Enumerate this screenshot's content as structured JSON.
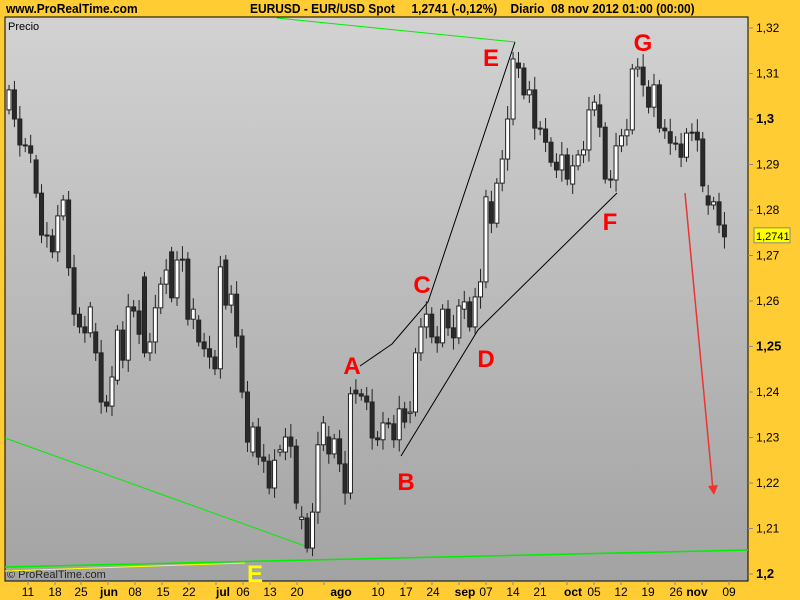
{
  "header": {
    "site": "www.ProRealTime.com",
    "title": "EURUSD - EUR/USD Spot     1,2741 (-0,12%)    Diario  08 nov 2012 01:00 (00:00)"
  },
  "panel": {
    "label": "Precio",
    "watermark": "© ProRealTime.com"
  },
  "colors": {
    "background": "#FFCC33",
    "bull_body": "#ffffff",
    "bear_body": "#2a2a2a",
    "trendline_green": "#00ee00",
    "arrow": "#ee3333",
    "labels": "#ff0000",
    "last_price_box": "#ffff00"
  },
  "chart_data": {
    "type": "candlestick",
    "ylim": [
      1.2,
      1.32
    ],
    "y_ticks": [
      "1,32",
      "1,31",
      "1,3",
      "1,29",
      "1,28",
      "1,27",
      "1,26",
      "1,25",
      "1,24",
      "1,23",
      "1,22",
      "1,21",
      "1,2"
    ],
    "y_tick_values": [
      1.32,
      1.31,
      1.3,
      1.29,
      1.28,
      1.27,
      1.26,
      1.25,
      1.24,
      1.23,
      1.22,
      1.21,
      1.2
    ],
    "bold_ticks": [
      "1,3",
      "1,25",
      "1,2"
    ],
    "last_price": "1,2741",
    "x_ticks": [
      {
        "label": "11",
        "bold": false
      },
      {
        "label": "18",
        "bold": false
      },
      {
        "label": "25",
        "bold": false
      },
      {
        "label": "jun",
        "bold": true
      },
      {
        "label": "08",
        "bold": false
      },
      {
        "label": "15",
        "bold": false
      },
      {
        "label": "22",
        "bold": false
      },
      {
        "label": "jul",
        "bold": true
      },
      {
        "label": "06",
        "bold": false
      },
      {
        "label": "13",
        "bold": false
      },
      {
        "label": "20",
        "bold": false
      },
      {
        "label": "ago",
        "bold": true
      },
      {
        "label": "10",
        "bold": false
      },
      {
        "label": "17",
        "bold": false
      },
      {
        "label": "24",
        "bold": false
      },
      {
        "label": "sep",
        "bold": true
      },
      {
        "label": "07",
        "bold": false
      },
      {
        "label": "14",
        "bold": false
      },
      {
        "label": "21",
        "bold": false
      },
      {
        "label": "oct",
        "bold": true
      },
      {
        "label": "05",
        "bold": false
      },
      {
        "label": "12",
        "bold": false
      },
      {
        "label": "19",
        "bold": false
      },
      {
        "label": "26",
        "bold": false
      },
      {
        "label": "nov",
        "bold": true
      },
      {
        "label": "09",
        "bold": false
      }
    ],
    "candles_open_close": [
      [
        1.302,
        1.3064
      ],
      [
        1.3064,
        1.3
      ],
      [
        1.3,
        1.2943
      ],
      [
        1.2943,
        1.2941
      ],
      [
        1.2941,
        1.2925
      ],
      [
        1.291,
        1.2837
      ],
      [
        1.2837,
        1.2745
      ],
      [
        1.2745,
        1.2743
      ],
      [
        1.2743,
        1.2708
      ],
      [
        1.2708,
        1.2787
      ],
      [
        1.2787,
        1.2822
      ],
      [
        1.2822,
        1.2673
      ],
      [
        1.2673,
        1.2571
      ],
      [
        1.2571,
        1.2543
      ],
      [
        1.2543,
        1.253
      ],
      [
        1.253,
        1.2587
      ],
      [
        1.2532,
        1.2486
      ],
      [
        1.2486,
        1.2378
      ],
      [
        1.2378,
        1.2369
      ],
      [
        1.2369,
        1.2433
      ],
      [
        1.2426,
        1.2536
      ],
      [
        1.2536,
        1.247
      ],
      [
        1.247,
        1.2587
      ],
      [
        1.2587,
        1.2578
      ],
      [
        1.2578,
        1.2527
      ],
      [
        1.2653,
        1.2486
      ],
      [
        1.2486,
        1.251
      ],
      [
        1.251,
        1.2585
      ],
      [
        1.2585,
        1.2637
      ],
      [
        1.2637,
        1.2668
      ],
      [
        1.2708,
        1.2607
      ],
      [
        1.2607,
        1.269
      ],
      [
        1.269,
        1.2692
      ],
      [
        1.2692,
        1.256
      ],
      [
        1.256,
        1.2582
      ],
      [
        1.2558,
        1.251
      ],
      [
        1.251,
        1.2495
      ],
      [
        1.2495,
        1.2477
      ],
      [
        1.2477,
        1.2451
      ],
      [
        1.2451,
        1.2675
      ],
      [
        1.269,
        1.2591
      ],
      [
        1.2591,
        1.2615
      ],
      [
        1.2615,
        1.2523
      ],
      [
        1.2523,
        1.24
      ],
      [
        1.24,
        1.229
      ],
      [
        1.2268,
        1.2323
      ],
      [
        1.2323,
        1.2257
      ],
      [
        1.2257,
        1.2248
      ],
      [
        1.2248,
        1.2189
      ],
      [
        1.2189,
        1.225
      ],
      [
        1.2268,
        1.2273
      ],
      [
        1.2268,
        1.2301
      ],
      [
        1.2301,
        1.2281
      ],
      [
        1.2281,
        1.2156
      ],
      [
        1.212,
        1.2125
      ],
      [
        1.2123,
        1.2057
      ],
      [
        1.2057,
        1.2136
      ],
      [
        1.2136,
        1.2284
      ],
      [
        1.2284,
        1.2332
      ],
      [
        1.2301,
        1.2264
      ],
      [
        1.2264,
        1.2297
      ],
      [
        1.2297,
        1.2242
      ],
      [
        1.2242,
        1.2178
      ],
      [
        1.2178,
        1.2396
      ],
      [
        1.2404,
        1.2396
      ],
      [
        1.2396,
        1.2391
      ],
      [
        1.2391,
        1.2378
      ],
      [
        1.2378,
        1.2299
      ],
      [
        1.2299,
        1.2295
      ],
      [
        1.2295,
        1.2332
      ],
      [
        1.2332,
        1.233
      ],
      [
        1.233,
        1.2295
      ],
      [
        1.2295,
        1.2363
      ],
      [
        1.2363,
        1.2334
      ],
      [
        1.2353,
        1.2356
      ],
      [
        1.2356,
        1.2486
      ],
      [
        1.2486,
        1.2543
      ],
      [
        1.2543,
        1.2571
      ],
      [
        1.2571,
        1.2521
      ],
      [
        1.2521,
        1.2508
      ],
      [
        1.2508,
        1.2582
      ],
      [
        1.2582,
        1.2541
      ],
      [
        1.2541,
        1.2519
      ],
      [
        1.2519,
        1.2589
      ],
      [
        1.2582,
        1.2598
      ],
      [
        1.2598,
        1.2543
      ],
      [
        1.2543,
        1.2609
      ],
      [
        1.2609,
        1.2642
      ],
      [
        1.2642,
        1.2829
      ],
      [
        1.2818,
        1.2771
      ],
      [
        1.2771,
        1.2859
      ],
      [
        1.2859,
        1.2912
      ],
      [
        1.2912,
        1.3
      ],
      [
        1.3,
        1.3132
      ],
      [
        1.3123,
        1.3112
      ],
      [
        1.3112,
        1.3053
      ],
      [
        1.3053,
        1.3064
      ],
      [
        1.3064,
        1.298
      ],
      [
        1.298,
        1.2978
      ],
      [
        1.2978,
        1.2949
      ],
      [
        1.2949,
        1.2905
      ],
      [
        1.2905,
        1.2888
      ],
      [
        1.2888,
        1.2921
      ],
      [
        1.2921,
        1.2868
      ],
      [
        1.2857,
        1.2897
      ],
      [
        1.2897,
        1.2921
      ],
      [
        1.2921,
        1.2932
      ],
      [
        1.2932,
        1.302
      ],
      [
        1.302,
        1.3037
      ],
      [
        1.3031,
        1.2982
      ],
      [
        1.2982,
        1.2868
      ],
      [
        1.2868,
        1.2866
      ],
      [
        1.2866,
        1.2941
      ],
      [
        1.2941,
        1.2963
      ],
      [
        1.2963,
        1.2976
      ],
      [
        1.2976,
        1.311
      ],
      [
        1.311,
        1.3114
      ],
      [
        1.3114,
        1.3075
      ],
      [
        1.307,
        1.3026
      ],
      [
        1.3026,
        1.3075
      ],
      [
        1.3075,
        1.298
      ],
      [
        1.298,
        1.2974
      ],
      [
        1.2972,
        1.2947
      ],
      [
        1.2947,
        1.2945
      ],
      [
        1.2945,
        1.2916
      ],
      [
        1.2916,
        1.2969
      ],
      [
        1.2969,
        1.2971
      ],
      [
        1.2971,
        1.2954
      ],
      [
        1.2956,
        1.2853
      ],
      [
        1.2831,
        1.2811
      ],
      [
        1.2811,
        1.2818
      ],
      [
        1.2818,
        1.2767
      ],
      [
        1.2767,
        1.2741
      ]
    ],
    "annotations": {
      "points": [
        "A",
        "B",
        "C",
        "D",
        "E",
        "F",
        "G"
      ],
      "yellow_label": "E"
    }
  }
}
